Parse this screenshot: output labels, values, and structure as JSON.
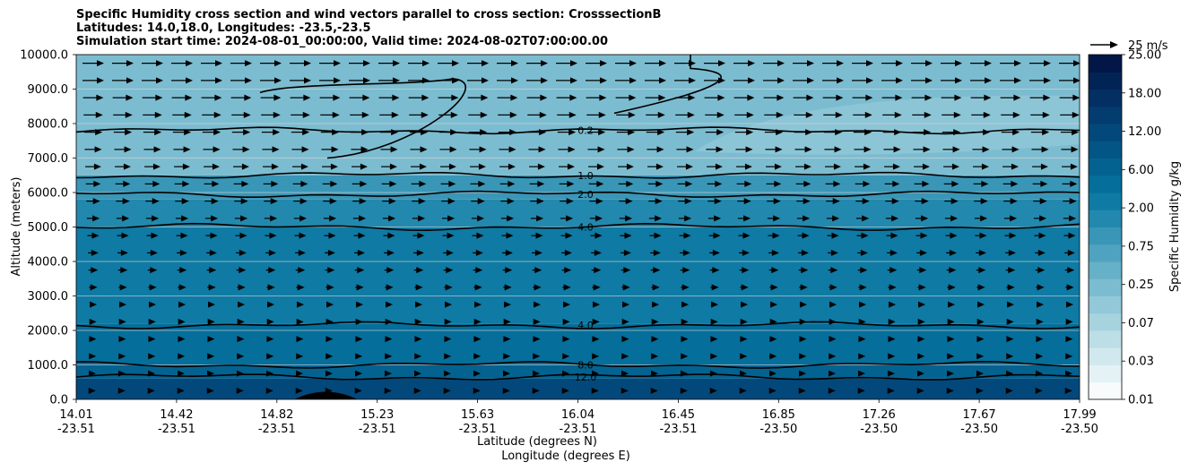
{
  "chart_data": {
    "type": "contour-cross-section",
    "title": [
      "Specific Humidity cross section and wind vectors parallel to cross section: CrosssectionB",
      "Latitudes: 14.0,18.0, Longitudes: -23.5,-23.5",
      "Simulation start time: 2024-08-01_00:00:00, Valid time: 2024-08-02T07:00:00.00"
    ],
    "ylabel": "Altitude (meters)",
    "xlabel_lat": "Latitude (degrees N)",
    "xlabel_lon": "Longitude (degrees E)",
    "ylim": [
      0,
      10000
    ],
    "y_ticks": [
      "0.0",
      "1000.0",
      "2000.0",
      "3000.0",
      "4000.0",
      "5000.0",
      "6000.0",
      "7000.0",
      "8000.0",
      "9000.0",
      "10000.0"
    ],
    "x_ticks": [
      {
        "lat": "14.01",
        "lon": "-23.51"
      },
      {
        "lat": "14.42",
        "lon": "-23.51"
      },
      {
        "lat": "14.82",
        "lon": "-23.51"
      },
      {
        "lat": "15.23",
        "lon": "-23.51"
      },
      {
        "lat": "15.63",
        "lon": "-23.51"
      },
      {
        "lat": "16.04",
        "lon": "-23.51"
      },
      {
        "lat": "16.45",
        "lon": "-23.51"
      },
      {
        "lat": "16.85",
        "lon": "-23.50"
      },
      {
        "lat": "17.26",
        "lon": "-23.50"
      },
      {
        "lat": "17.67",
        "lon": "-23.50"
      },
      {
        "lat": "17.99",
        "lon": "-23.50"
      }
    ],
    "colorbar": {
      "label": "Specific Humidity g/kg",
      "tick_labels": [
        "0.01",
        "0.03",
        "0.07",
        "0.25",
        "0.75",
        "2.00",
        "6.00",
        "12.00",
        "18.00",
        "25.00"
      ],
      "colors": [
        "#f7fbfc",
        "#e5f2f5",
        "#d1e9ee",
        "#bcdfe7",
        "#a7d3df",
        "#92c8d8",
        "#7cbcd0",
        "#66b0c8",
        "#50a3c0",
        "#3996b7",
        "#2388ad",
        "#0f7aa3",
        "#056e9a",
        "#046290",
        "#035585",
        "#03487a",
        "#033c6e",
        "#032f62",
        "#022355",
        "#021747"
      ]
    },
    "humidity_bands": [
      {
        "alt_bottom": 0,
        "alt_top": 600,
        "q": 15
      },
      {
        "alt_bottom": 600,
        "alt_top": 1000,
        "q": 10
      },
      {
        "alt_bottom": 1000,
        "alt_top": 2200,
        "q": 6
      },
      {
        "alt_bottom": 2200,
        "alt_top": 5000,
        "q": 5
      },
      {
        "alt_bottom": 5000,
        "alt_top": 5800,
        "q": 3
      },
      {
        "alt_bottom": 5800,
        "alt_top": 6500,
        "q": 1.5
      },
      {
        "alt_bottom": 6500,
        "alt_top": 10000,
        "q": 0.4
      }
    ],
    "contours": [
      {
        "label": "12.0",
        "level": 12.0,
        "alt_m": 650
      },
      {
        "label": "8.0",
        "level": 8.0,
        "alt_m": 1000
      },
      {
        "label": "4.0",
        "level": 4.0,
        "alt_m": 2150
      },
      {
        "label": "4.0",
        "level": 4.0,
        "alt_m": 5000
      },
      {
        "label": "2.0",
        "level": 2.0,
        "alt_m": 5950
      },
      {
        "label": "1.0",
        "level": 1.0,
        "alt_m": 6500
      },
      {
        "label": "0.2",
        "level": 0.2,
        "alt_m": 7800
      }
    ],
    "wind": {
      "reference_label": "25 m/s",
      "reference_speed": 25,
      "direction": "parallel, toward increasing latitude"
    },
    "terrain": {
      "lat_center": 15.0,
      "max_alt_m": 200
    }
  }
}
